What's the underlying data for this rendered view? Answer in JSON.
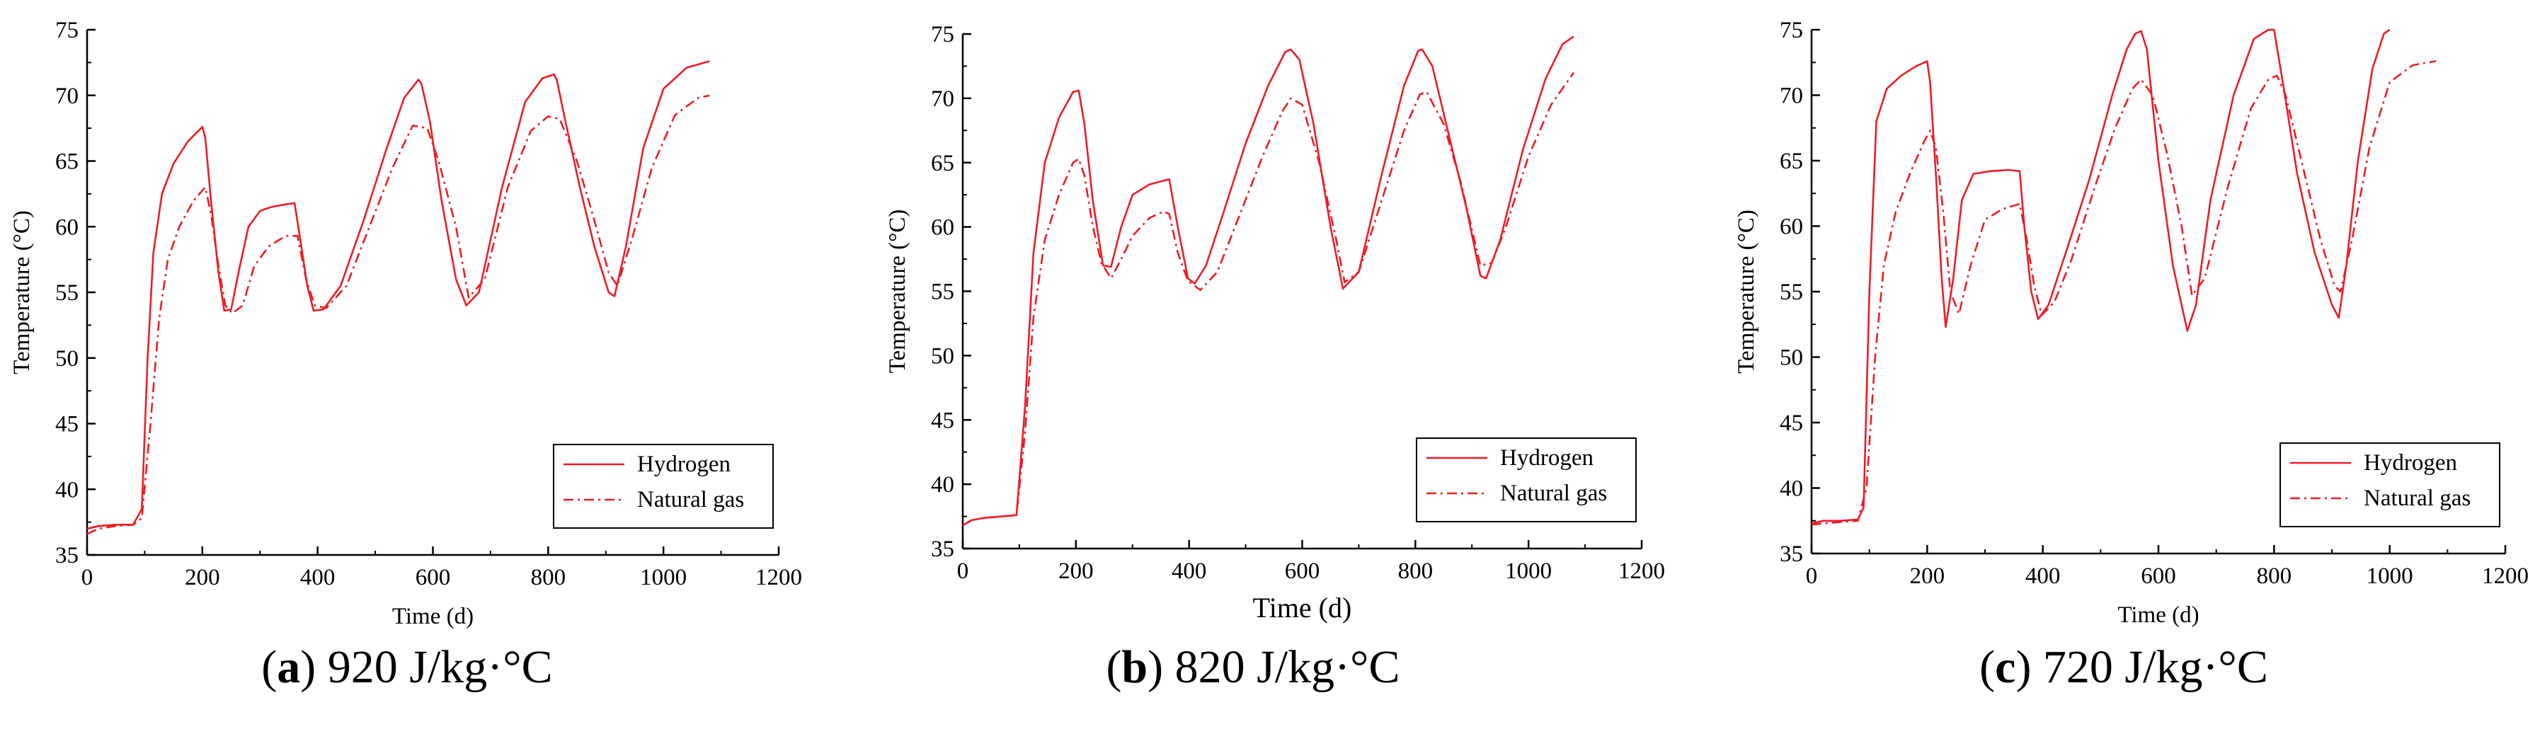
{
  "colors": {
    "line": "#ee1c25",
    "axis": "#000000"
  },
  "chart_data": [
    {
      "type": "line",
      "panel_label": "a",
      "caption": "920 J/kg·°C",
      "xlabel": "Time (d)",
      "ylabel": "Temperature (°C)",
      "xlim": [
        0,
        1200
      ],
      "ylim": [
        35,
        75
      ],
      "xticks": [
        "0",
        "200",
        "400",
        "600",
        "800",
        "1000",
        "1200"
      ],
      "yticks": [
        "35",
        "40",
        "45",
        "50",
        "55",
        "60",
        "65",
        "70",
        "75"
      ],
      "legend": {
        "placement": "bottom-right"
      },
      "series": [
        {
          "name": "Hydrogen",
          "style": "solid",
          "x": [
            0,
            20,
            50,
            80,
            95,
            105,
            115,
            130,
            150,
            175,
            200,
            205,
            215,
            228,
            238,
            250,
            265,
            280,
            300,
            320,
            345,
            360,
            370,
            382,
            393,
            410,
            440,
            480,
            520,
            550,
            575,
            580,
            595,
            615,
            640,
            658,
            680,
            720,
            760,
            790,
            810,
            815,
            830,
            855,
            880,
            905,
            915,
            935,
            965,
            1000,
            1040,
            1080
          ],
          "y": [
            37.0,
            37.2,
            37.3,
            37.3,
            38.5,
            50,
            58,
            62.5,
            64.8,
            66.5,
            67.6,
            66.8,
            62,
            56.5,
            53.6,
            53.7,
            57,
            60,
            61.2,
            61.5,
            61.7,
            61.8,
            59,
            55.5,
            53.6,
            53.7,
            55.5,
            60.5,
            66,
            69.8,
            71.2,
            70.9,
            68,
            62,
            56,
            54,
            55,
            63,
            69.5,
            71.3,
            71.6,
            71.2,
            68,
            63,
            58.5,
            55,
            54.7,
            58.5,
            66,
            70.5,
            72.1,
            72.6
          ]
        },
        {
          "name": "Natural gas",
          "style": "dashdot",
          "x": [
            0,
            20,
            50,
            80,
            95,
            110,
            125,
            140,
            160,
            185,
            205,
            215,
            228,
            240,
            252,
            270,
            290,
            315,
            345,
            365,
            380,
            395,
            415,
            450,
            490,
            530,
            565,
            590,
            610,
            640,
            662,
            690,
            730,
            770,
            800,
            820,
            850,
            880,
            905,
            920,
            945,
            980,
            1020,
            1060,
            1080
          ],
          "y": [
            36.6,
            37.0,
            37.2,
            37.3,
            37.8,
            45,
            53,
            57.5,
            60,
            62,
            63,
            61,
            57,
            54,
            53.4,
            54,
            57,
            58.5,
            59.3,
            59.3,
            56,
            54,
            53.8,
            55.5,
            60,
            64.5,
            67.7,
            67.5,
            65,
            60,
            54.6,
            56,
            63,
            67.3,
            68.4,
            68.2,
            65,
            60.5,
            56.5,
            55.5,
            59,
            64.5,
            68.5,
            69.8,
            70.0
          ]
        }
      ]
    },
    {
      "type": "line",
      "panel_label": "b",
      "caption": "820 J/kg·°C",
      "xlabel": "Time (d)",
      "ylabel": "Temperature (°C)",
      "xlim": [
        0,
        1200
      ],
      "ylim": [
        35,
        75
      ],
      "xticks": [
        "0",
        "200",
        "400",
        "600",
        "800",
        "1000",
        "1200"
      ],
      "yticks": [
        "35",
        "40",
        "45",
        "50",
        "55",
        "60",
        "65",
        "70",
        "75"
      ],
      "legend": {
        "placement": "bottom-right"
      },
      "series": [
        {
          "name": "Hydrogen",
          "style": "solid",
          "x": [
            0,
            15,
            40,
            70,
            95,
            110,
            125,
            145,
            170,
            195,
            205,
            215,
            230,
            248,
            262,
            280,
            300,
            330,
            355,
            365,
            380,
            398,
            410,
            430,
            460,
            500,
            540,
            570,
            580,
            595,
            620,
            650,
            672,
            700,
            740,
            780,
            805,
            812,
            830,
            860,
            890,
            915,
            925,
            950,
            990,
            1030,
            1060,
            1080
          ],
          "y": [
            36.8,
            37.2,
            37.4,
            37.5,
            37.6,
            46,
            58,
            65,
            68.5,
            70.5,
            70.6,
            68,
            62,
            57,
            56.9,
            60,
            62.5,
            63.3,
            63.6,
            63.7,
            60,
            56,
            55.6,
            57,
            61,
            66.5,
            71,
            73.6,
            73.8,
            73,
            68,
            60,
            55.2,
            56.5,
            64,
            71,
            73.7,
            73.8,
            72.5,
            67,
            61.5,
            56.2,
            56,
            59,
            66,
            71.5,
            74.2,
            74.8
          ]
        },
        {
          "name": "Natural gas",
          "style": "dashdot",
          "x": [
            0,
            15,
            40,
            70,
            95,
            110,
            125,
            145,
            170,
            195,
            205,
            215,
            230,
            245,
            262,
            280,
            300,
            330,
            355,
            365,
            380,
            398,
            420,
            450,
            490,
            530,
            565,
            580,
            600,
            630,
            660,
            675,
            700,
            740,
            780,
            808,
            820,
            850,
            880,
            915,
            935,
            960,
            1000,
            1040,
            1080
          ],
          "y": [
            36.8,
            37.2,
            37.4,
            37.5,
            37.6,
            44,
            53,
            59,
            62.5,
            65,
            65.3,
            64,
            60,
            57.2,
            56,
            57.5,
            59.3,
            60.7,
            61.2,
            61,
            58,
            55.8,
            55.1,
            56.5,
            61,
            65.5,
            69,
            70,
            69.5,
            65,
            59,
            55.7,
            56.5,
            62,
            67.5,
            70.3,
            70.5,
            68,
            63.5,
            57,
            57.2,
            60,
            65.5,
            69.5,
            72
          ]
        }
      ]
    },
    {
      "type": "line",
      "panel_label": "c",
      "caption": "720 J/kg·°C",
      "xlabel": "Time (d)",
      "ylabel": "Temperature (°C)",
      "xlim": [
        0,
        1200
      ],
      "ylim": [
        35,
        75
      ],
      "xticks": [
        "0",
        "200",
        "400",
        "600",
        "800",
        "1000",
        "1200"
      ],
      "yticks": [
        "35",
        "40",
        "45",
        "50",
        "55",
        "60",
        "65",
        "70",
        "75"
      ],
      "legend": {
        "placement": "bottom-right"
      },
      "series": [
        {
          "name": "Hydrogen",
          "style": "solid",
          "x": [
            0,
            20,
            50,
            80,
            90,
            100,
            112,
            130,
            155,
            180,
            200,
            205,
            215,
            225,
            232,
            245,
            260,
            280,
            310,
            340,
            360,
            368,
            380,
            392,
            410,
            440,
            480,
            520,
            545,
            560,
            570,
            580,
            600,
            625,
            650,
            665,
            690,
            730,
            765,
            790,
            800,
            815,
            840,
            870,
            900,
            912,
            925,
            945,
            970,
            990,
            1000
          ],
          "y": [
            37.3,
            37.5,
            37.5,
            37.6,
            38.5,
            55,
            68,
            70.5,
            71.5,
            72.2,
            72.6,
            71,
            64,
            56,
            52.3,
            56,
            62,
            64,
            64.2,
            64.3,
            64.2,
            60,
            55,
            52.9,
            54,
            58,
            63.5,
            70,
            73.5,
            74.7,
            74.9,
            73.5,
            65,
            57,
            52,
            54,
            62,
            70,
            74.3,
            75,
            75,
            71,
            64,
            58,
            54,
            53,
            57,
            65,
            72,
            74.7,
            75
          ]
        },
        {
          "name": "Natural gas",
          "style": "dashdot",
          "x": [
            0,
            20,
            50,
            80,
            95,
            110,
            125,
            145,
            170,
            195,
            205,
            215,
            228,
            240,
            255,
            275,
            300,
            330,
            360,
            372,
            385,
            398,
            420,
            450,
            490,
            525,
            555,
            570,
            590,
            615,
            640,
            658,
            680,
            720,
            760,
            790,
            805,
            820,
            850,
            880,
            905,
            915,
            935,
            965,
            1000,
            1040,
            1080
          ],
          "y": [
            37.2,
            37.3,
            37.4,
            37.5,
            40,
            50,
            57,
            61,
            64,
            66.5,
            67.3,
            66,
            61,
            55,
            53.3,
            57,
            60.5,
            61.3,
            61.7,
            59,
            55.5,
            53.2,
            54.2,
            57.5,
            63,
            67.5,
            70.5,
            71.2,
            70,
            65.5,
            60,
            54.7,
            56,
            63,
            69,
            71.2,
            71.5,
            70,
            64.5,
            59,
            55.4,
            55,
            59,
            66,
            71,
            72.3,
            72.6
          ]
        }
      ]
    }
  ]
}
